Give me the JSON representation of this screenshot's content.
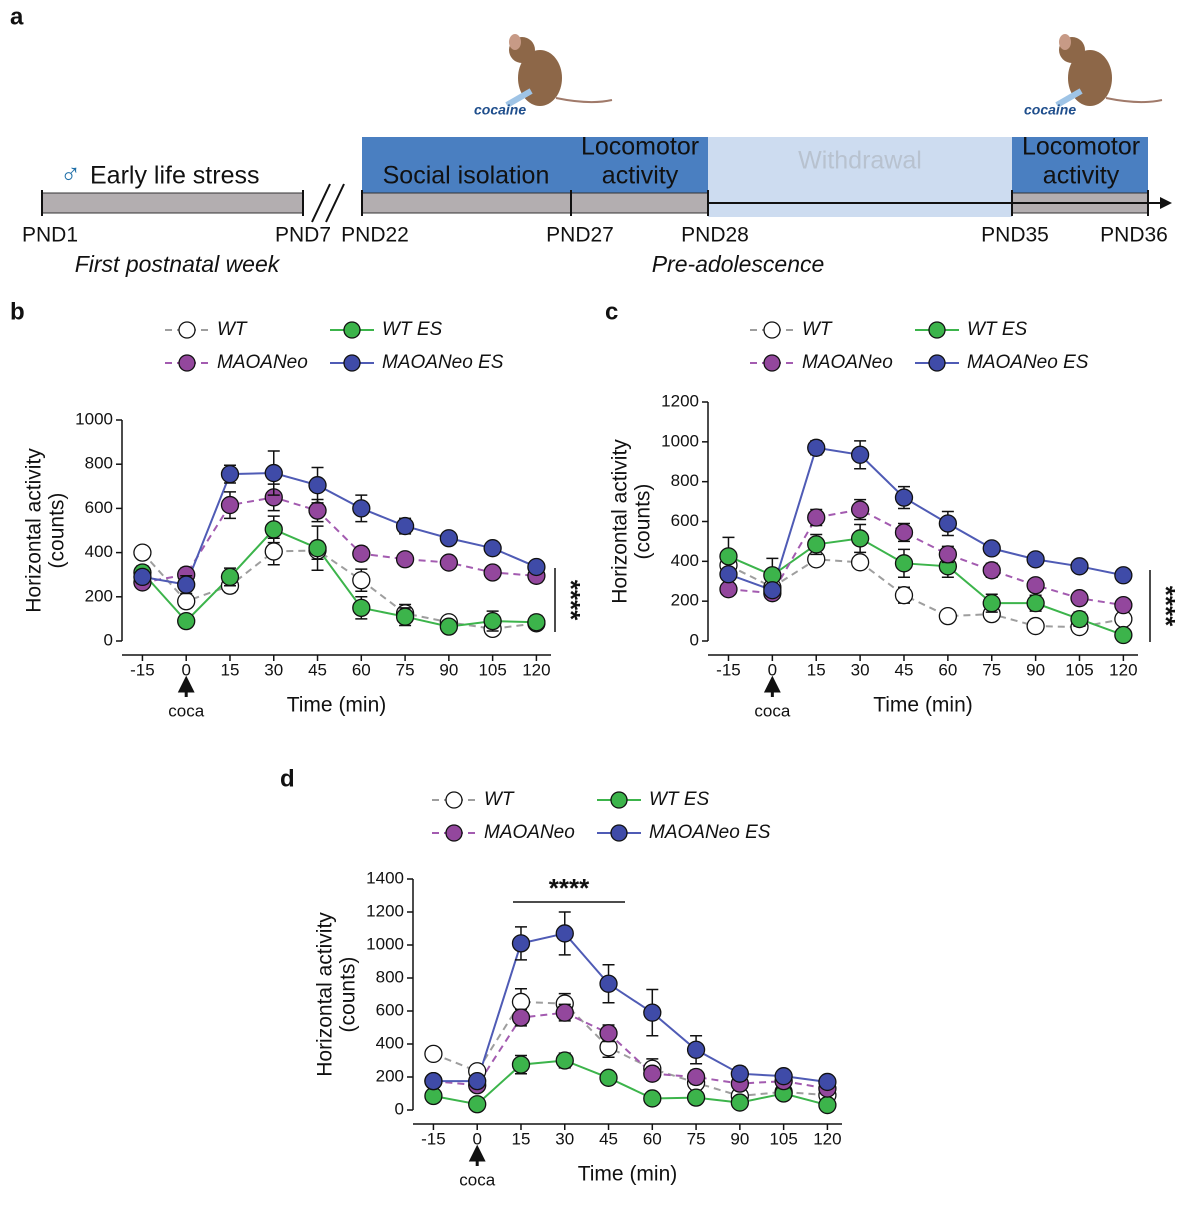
{
  "timeline": {
    "panel_label": "a",
    "male_symbol": "♂",
    "early_label": "Early life stress",
    "social_label": "Social isolation",
    "locomotor_1": [
      "Locomotor",
      "activity"
    ],
    "withdrawal": "Withdrawal",
    "locomotor_2": [
      "Locomotor",
      "activity"
    ],
    "drug_labels": [
      "cocaine",
      "cocaine"
    ],
    "pnd": [
      "PND1",
      "PND7",
      "PND22",
      "PND27",
      "PND28",
      "PND35",
      "PND36"
    ],
    "periods": [
      "First postnatal week",
      "Pre-adolescence"
    ]
  },
  "chart_data": [
    {
      "type": "line",
      "panel_label": "b",
      "x": [
        -15,
        0,
        15,
        30,
        45,
        60,
        75,
        90,
        105,
        120
      ],
      "xlim": [
        -22,
        125
      ],
      "xticks": [
        -15,
        0,
        15,
        30,
        45,
        60,
        75,
        90,
        105,
        120
      ],
      "ylim": [
        0,
        1000
      ],
      "yticks": [
        0,
        200,
        400,
        600,
        800,
        1000
      ],
      "xlabel": "Time (min)",
      "ylabel": [
        "Horizontal activity",
        "(counts)"
      ],
      "injection_label": "coca",
      "significance": "****",
      "series": [
        {
          "name": "WT",
          "color": "#ffffff",
          "line_color": "#9e9e9e",
          "dashed": true,
          "values": [
            400,
            180,
            250,
            405,
            410,
            275,
            125,
            85,
            55,
            80
          ],
          "errors": [
            20,
            25,
            30,
            60,
            40,
            50,
            40,
            25,
            20,
            20
          ]
        },
        {
          "name": "WT ES",
          "color": "#3cb44b",
          "line_color": "#3cb44b",
          "dashed": false,
          "values": [
            310,
            90,
            290,
            505,
            420,
            150,
            110,
            65,
            90,
            85
          ],
          "errors": [
            30,
            20,
            40,
            60,
            100,
            50,
            40,
            20,
            45,
            30
          ]
        },
        {
          "name": "MAOANeo",
          "color": "#93479d",
          "line_color": "#a35bb0",
          "dashed": true,
          "values": [
            265,
            300,
            615,
            650,
            590,
            395,
            370,
            355,
            310,
            295
          ],
          "errors": [
            25,
            30,
            60,
            60,
            50,
            30,
            25,
            25,
            20,
            30
          ]
        },
        {
          "name": "MAOANeo ES",
          "color": "#3f4ba8",
          "line_color": "#4f5bb5",
          "dashed": false,
          "values": [
            290,
            255,
            755,
            760,
            705,
            600,
            520,
            465,
            420,
            335
          ],
          "errors": [
            30,
            40,
            40,
            100,
            80,
            60,
            35,
            20,
            20,
            25
          ]
        }
      ]
    },
    {
      "type": "line",
      "panel_label": "c",
      "x": [
        -15,
        0,
        15,
        30,
        45,
        60,
        75,
        90,
        105,
        120
      ],
      "xlim": [
        -22,
        125
      ],
      "xticks": [
        -15,
        0,
        15,
        30,
        45,
        60,
        75,
        90,
        105,
        120
      ],
      "ylim": [
        0,
        1200
      ],
      "yticks": [
        0,
        200,
        400,
        600,
        800,
        1000,
        1200
      ],
      "xlabel": "Time (min)",
      "ylabel": [
        "Horizontal activity",
        "(counts)"
      ],
      "injection_label": "coca",
      "significance": "****",
      "series": [
        {
          "name": "WT",
          "color": "#ffffff",
          "line_color": "#9e9e9e",
          "dashed": true,
          "values": [
            380,
            270,
            410,
            395,
            230,
            125,
            135,
            75,
            70,
            110
          ],
          "errors": [
            30,
            25,
            25,
            30,
            40,
            30,
            25,
            20,
            20,
            25
          ]
        },
        {
          "name": "WT ES",
          "color": "#3cb44b",
          "line_color": "#3cb44b",
          "dashed": false,
          "values": [
            425,
            330,
            485,
            515,
            390,
            375,
            190,
            190,
            110,
            30
          ],
          "errors": [
            95,
            85,
            50,
            70,
            70,
            55,
            45,
            40,
            35,
            20
          ]
        },
        {
          "name": "MAOANeo",
          "color": "#93479d",
          "line_color": "#a35bb0",
          "dashed": true,
          "values": [
            260,
            240,
            620,
            660,
            545,
            435,
            355,
            280,
            215,
            180
          ],
          "errors": [
            25,
            25,
            40,
            50,
            45,
            40,
            35,
            25,
            20,
            20
          ]
        },
        {
          "name": "MAOANeo ES",
          "color": "#3f4ba8",
          "line_color": "#4f5bb5",
          "dashed": false,
          "values": [
            335,
            255,
            970,
            935,
            720,
            590,
            465,
            410,
            375,
            330
          ],
          "errors": [
            30,
            25,
            35,
            70,
            55,
            60,
            30,
            20,
            20,
            20
          ]
        }
      ]
    },
    {
      "type": "line",
      "panel_label": "d",
      "x": [
        -15,
        0,
        15,
        30,
        45,
        60,
        75,
        90,
        105,
        120
      ],
      "xlim": [
        -22,
        125
      ],
      "xticks": [
        -15,
        0,
        15,
        30,
        45,
        60,
        75,
        90,
        105,
        120
      ],
      "ylim": [
        0,
        1400
      ],
      "yticks": [
        0,
        200,
        400,
        600,
        800,
        1000,
        1200,
        1400
      ],
      "xlabel": "Time (min)",
      "ylabel": [
        "Horizontal activity",
        "(counts)"
      ],
      "injection_label": "coca",
      "significance": "****",
      "series": [
        {
          "name": "WT",
          "color": "#ffffff",
          "line_color": "#9e9e9e",
          "dashed": true,
          "values": [
            340,
            235,
            655,
            645,
            380,
            250,
            165,
            85,
            110,
            90
          ],
          "errors": [
            20,
            25,
            80,
            60,
            60,
            60,
            40,
            30,
            40,
            30
          ]
        },
        {
          "name": "WT ES",
          "color": "#3cb44b",
          "line_color": "#3cb44b",
          "dashed": false,
          "values": [
            85,
            35,
            275,
            300,
            195,
            70,
            75,
            45,
            100,
            30
          ],
          "errors": [
            25,
            15,
            55,
            45,
            20,
            20,
            20,
            20,
            30,
            15
          ]
        },
        {
          "name": "MAOANeo",
          "color": "#93479d",
          "line_color": "#a35bb0",
          "dashed": true,
          "values": [
            175,
            150,
            560,
            590,
            465,
            220,
            200,
            160,
            175,
            130
          ],
          "errors": [
            25,
            30,
            50,
            50,
            50,
            40,
            40,
            30,
            30,
            25
          ]
        },
        {
          "name": "MAOANeo ES",
          "color": "#3f4ba8",
          "line_color": "#4f5bb5",
          "dashed": false,
          "values": [
            175,
            175,
            1010,
            1070,
            765,
            590,
            365,
            220,
            205,
            170
          ],
          "errors": [
            30,
            30,
            100,
            130,
            115,
            140,
            85,
            40,
            30,
            25
          ]
        }
      ]
    }
  ]
}
